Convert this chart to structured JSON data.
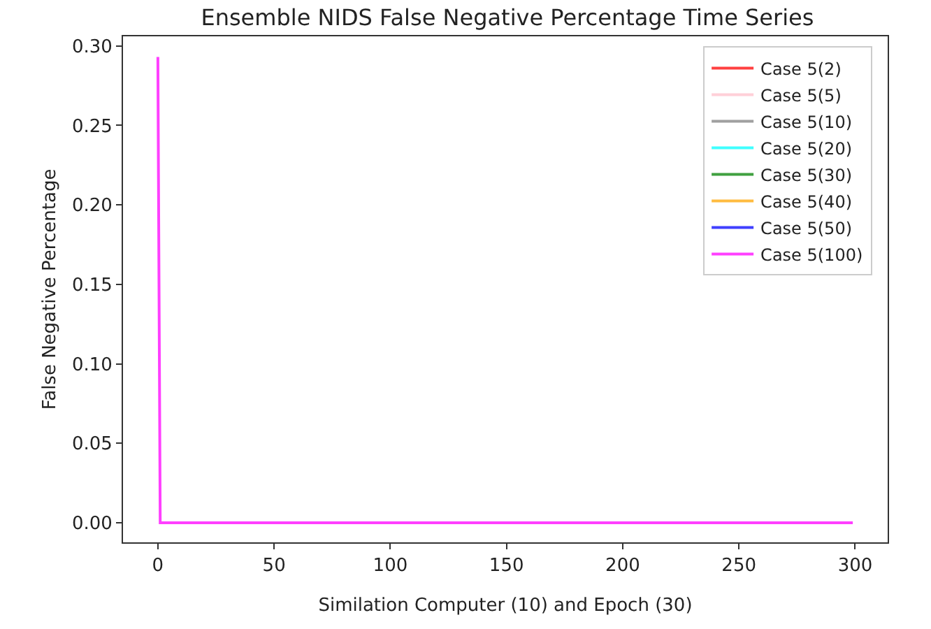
{
  "chart_data": {
    "type": "line",
    "title": "Ensemble NIDS False Negative Percentage Time Series",
    "xlabel": "Similation Computer (10) and Epoch (30)",
    "ylabel": "False Negative Percentage",
    "x": [
      0,
      1,
      299
    ],
    "series": [
      {
        "name": "Case 5(2)",
        "color": "#ff0000",
        "values": [
          null,
          null,
          null
        ]
      },
      {
        "name": "Case 5(5)",
        "color": "#ffc0cb",
        "values": [
          null,
          null,
          null
        ]
      },
      {
        "name": "Case 5(10)",
        "color": "#808080",
        "values": [
          null,
          null,
          null
        ]
      },
      {
        "name": "Case 5(20)",
        "color": "#00ffff",
        "values": [
          null,
          null,
          null
        ]
      },
      {
        "name": "Case 5(30)",
        "color": "#008000",
        "values": [
          null,
          null,
          null
        ]
      },
      {
        "name": "Case 5(40)",
        "color": "#ffa500",
        "values": [
          null,
          null,
          null
        ]
      },
      {
        "name": "Case 5(50)",
        "color": "#0000ff",
        "values": [
          null,
          null,
          null
        ]
      },
      {
        "name": "Case 5(100)",
        "color": "#ff00ff",
        "values": [
          0.293,
          0,
          0
        ]
      }
    ],
    "xlim": [
      -15,
      314
    ],
    "xticks": [
      0,
      50,
      100,
      150,
      200,
      250,
      300
    ],
    "ylim": [
      -0.0123,
      0.306
    ],
    "yticks": [
      {
        "value": 0,
        "label": "0.00"
      },
      {
        "value": 0.05,
        "label": "0.05"
      },
      {
        "value": 0.1,
        "label": "0.10"
      },
      {
        "value": 0.15,
        "label": "0.15"
      },
      {
        "value": 0.2,
        "label": "0.20"
      },
      {
        "value": 0.25,
        "label": "0.25"
      },
      {
        "value": 0.3,
        "label": "0.30"
      }
    ],
    "grid": false,
    "legend": "top right",
    "line_style": "solid",
    "marker": "none"
  }
}
